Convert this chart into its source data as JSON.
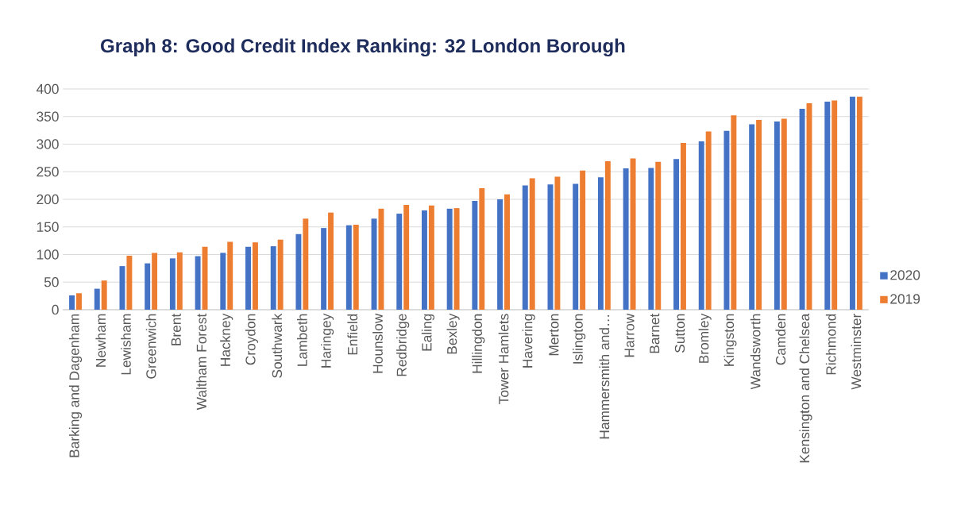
{
  "chart_data": {
    "type": "bar",
    "title": "Graph 8: Good Credit Index Ranking: 32 London Borough",
    "categories": [
      "Barking and Dagenham",
      "Newham",
      "Lewisham",
      "Greenwich",
      "Brent",
      "Waltham Forest",
      "Hackney",
      "Croydon",
      "Southwark",
      "Lambeth",
      "Haringey",
      "Enfield",
      "Hounslow",
      "Redbridge",
      "Ealing",
      "Bexley",
      "Hillingdon",
      "Tower Hamlets",
      "Havering",
      "Merton",
      "Islington",
      "Hammersmith and…",
      "Harrow",
      "Barnet",
      "Sutton",
      "Bromley",
      "Kingston",
      "Wandsworth",
      "Camden",
      "Kensington and Chelsea",
      "Richmond",
      "Westminster"
    ],
    "series": [
      {
        "name": "2020",
        "color": "#4472c4",
        "values": [
          26,
          38,
          79,
          84,
          93,
          97,
          103,
          114,
          115,
          137,
          148,
          153,
          165,
          174,
          180,
          183,
          197,
          200,
          225,
          227,
          228,
          240,
          256,
          257,
          273,
          305,
          324,
          336,
          341,
          364,
          377,
          386
        ]
      },
      {
        "name": "2019",
        "color": "#ed7d31",
        "values": [
          30,
          53,
          98,
          103,
          104,
          114,
          123,
          122,
          127,
          165,
          176,
          154,
          183,
          190,
          189,
          184,
          220,
          209,
          238,
          241,
          252,
          269,
          274,
          268,
          302,
          323,
          352,
          344,
          346,
          374,
          379,
          386
        ]
      }
    ],
    "ylim": [
      0,
      400
    ],
    "yticks": [
      0,
      50,
      100,
      150,
      200,
      250,
      300,
      350,
      400
    ],
    "grid": "y",
    "legend": "right"
  }
}
